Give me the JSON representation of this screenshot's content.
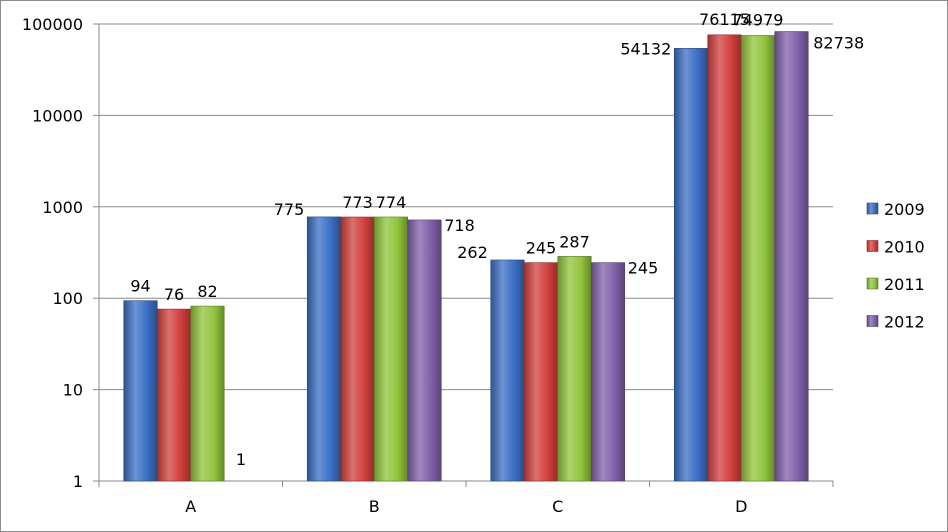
{
  "chart_data": {
    "type": "bar",
    "y_scale": "log",
    "ylim": [
      1,
      100000
    ],
    "y_ticks": [
      "1",
      "10",
      "100",
      "1000",
      "10000",
      "100000"
    ],
    "categories": [
      "A",
      "B",
      "C",
      "D"
    ],
    "series": [
      {
        "name": "2009",
        "color": "#3b6fc4",
        "values": [
          94,
          775,
          262,
          54132
        ],
        "labels": [
          "94",
          "775",
          "262",
          "54132"
        ]
      },
      {
        "name": "2010",
        "color": "#d2403e",
        "values": [
          76,
          773,
          245,
          76115
        ],
        "labels": [
          "76",
          "773",
          "245",
          "76115"
        ]
      },
      {
        "name": "2011",
        "color": "#92c43c",
        "values": [
          82,
          774,
          287,
          74979
        ],
        "labels": [
          "82",
          "774",
          "287",
          "74979"
        ]
      },
      {
        "name": "2012",
        "color": "#8060aa",
        "values": [
          1,
          718,
          245,
          82738
        ],
        "labels": [
          "1",
          "718",
          "245",
          "82738"
        ]
      }
    ],
    "grid": true,
    "legend_position": "right"
  }
}
